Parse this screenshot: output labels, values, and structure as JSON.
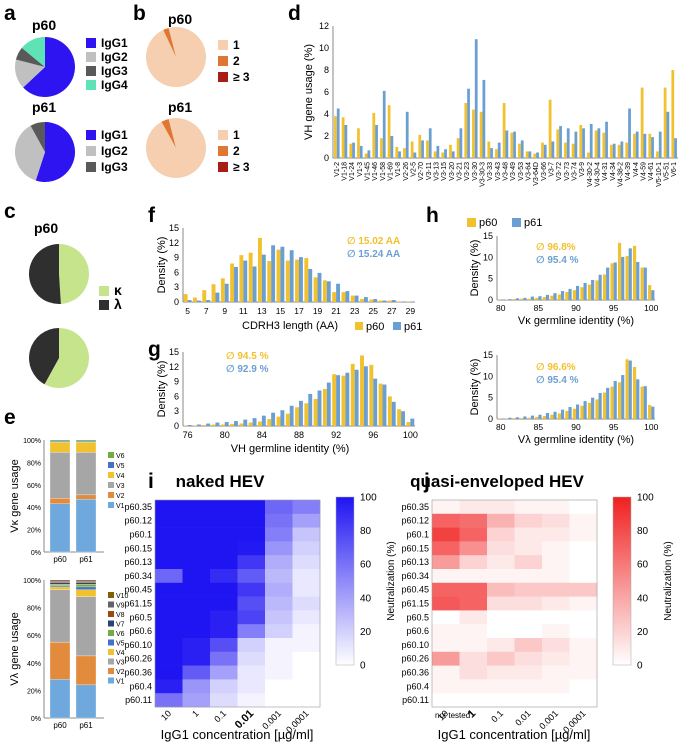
{
  "colors": {
    "igg1": "#2d14f0",
    "igg2": "#c0c0c0",
    "igg3": "#595959",
    "igg4": "#5ee3b5",
    "uses1": "#f5cfaf",
    "uses2": "#df7733",
    "uses3": "#a81d14",
    "kappa": "#c5e48c",
    "lambda": "#2f2f2f",
    "p60": "#f2c12e",
    "p61": "#6b9fd2",
    "naked": "#1f14f2",
    "quasi": "#f02020",
    "vk": {
      "V1": "#6fa8dc",
      "V2": "#e38b3d",
      "V3": "#a6a6a6",
      "V4": "#f2c12e",
      "V5": "#4472c4",
      "V6": "#70ad47"
    },
    "vl": {
      "V1": "#6fa8dc",
      "V2": "#e38b3d",
      "V3": "#a6a6a6",
      "V4": "#f2c12e",
      "V5": "#4472c4",
      "V6": "#70ad47",
      "V7": "#264478",
      "V8": "#9e480e",
      "V9": "#636363",
      "V10": "#806000"
    }
  },
  "panels": {
    "a": "a",
    "b": "b",
    "c": "c",
    "d": "d",
    "e": "e",
    "f": "f",
    "g": "g",
    "h": "h",
    "i": "i",
    "j": "j"
  },
  "chart_data": [
    {
      "id": "a",
      "type": "pie",
      "title_p60": "p60",
      "title_p61": "p61",
      "p60": {
        "labels": [
          "IgG1",
          "IgG2",
          "IgG3",
          "IgG4"
        ],
        "values": [
          63,
          16,
          7,
          14
        ]
      },
      "p61": {
        "labels": [
          "IgG1",
          "IgG2",
          "IgG3"
        ],
        "values": [
          55,
          37,
          8
        ]
      }
    },
    {
      "id": "b",
      "type": "pie",
      "title_p60": "p60",
      "title_p61": "p61",
      "labels": [
        "1",
        "2",
        "≥ 3"
      ],
      "p60": {
        "values": [
          97,
          3,
          0
        ]
      },
      "p61": {
        "values": [
          96,
          4,
          0
        ]
      }
    },
    {
      "id": "c",
      "type": "pie",
      "title_p60": "p60",
      "title_p61": "p61",
      "labels": [
        "κ",
        "λ"
      ],
      "p60": {
        "values": [
          49,
          51
        ]
      },
      "p61": {
        "values": [
          58,
          42
        ]
      }
    },
    {
      "id": "d",
      "type": "bar",
      "ylabel": "VH gene usage (%)",
      "ylim": [
        0,
        12
      ],
      "yticks": [
        "0",
        "2",
        "4",
        "6",
        "8",
        "10",
        "12"
      ],
      "legend": [
        "p60",
        "p61"
      ],
      "categories": [
        "V1-2",
        "V1-18",
        "V1-24",
        "V1-3",
        "V1-45",
        "V1-46",
        "V1-58",
        "V1-69",
        "V1-8",
        "V2-26",
        "V2-5",
        "V2-70",
        "V3-11",
        "V3-13",
        "V3-15",
        "V3-20",
        "V3-21",
        "V3-23",
        "V3-30",
        "V3-30-3",
        "V3-33",
        "V3-43",
        "V3-48",
        "V3-49",
        "V3-53",
        "V3-64",
        "V3-64D",
        "V3-66",
        "V3-7",
        "V3-72",
        "V3-73",
        "V3-74",
        "V3-9",
        "V4-30-2",
        "V4-30-4",
        "V4-31",
        "V4-34",
        "V4-38-2",
        "V4-39",
        "V4-4",
        "V4-59",
        "V4-61",
        "V5-10-1",
        "V5-51",
        "V6-1"
      ],
      "series": [
        {
          "name": "p60",
          "values": [
            3.8,
            3.7,
            1.3,
            2.7,
            0.4,
            4.1,
            1.8,
            4.8,
            1.0,
            0.9,
            1.5,
            2.1,
            1.6,
            0.6,
            0.5,
            1.2,
            1.8,
            5.0,
            4.4,
            4.2,
            1.5,
            0.8,
            5.0,
            2.3,
            1.3,
            0.6,
            0.4,
            1.4,
            5.3,
            2.6,
            1.4,
            1.3,
            3.0,
            0.5,
            2.5,
            2.3,
            1.2,
            1.2,
            1.4,
            2.2,
            6.4,
            2.2,
            0.6,
            6.4,
            8.0
          ]
        },
        {
          "name": "p61",
          "values": [
            4.5,
            3.0,
            1.4,
            1.1,
            0.7,
            3.0,
            6.1,
            2.0,
            0.6,
            4.2,
            0.5,
            1.6,
            2.7,
            1.1,
            0.8,
            0.6,
            2.7,
            6.3,
            10.8,
            7.1,
            0.9,
            1.4,
            2.5,
            2.4,
            1.6,
            0.6,
            0.5,
            1.2,
            1.5,
            2.9,
            2.7,
            2.4,
            2.7,
            3.1,
            2.7,
            3.3,
            1.3,
            1.5,
            4.5,
            2.4,
            2.2,
            1.9,
            2.4,
            4.2,
            1.8
          ]
        }
      ]
    },
    {
      "id": "e_vk",
      "type": "stacked-bar",
      "ylabel": "Vκ gene usage",
      "yticks": [
        "0%",
        "20%",
        "40%",
        "60%",
        "80%",
        "100%"
      ],
      "categories": [
        "p60",
        "p61"
      ],
      "legend": [
        "V6",
        "V5",
        "V4",
        "V3",
        "V2",
        "V1"
      ],
      "series": [
        {
          "name": "V1",
          "values": [
            43,
            47
          ]
        },
        {
          "name": "V2",
          "values": [
            5,
            4
          ]
        },
        {
          "name": "V3",
          "values": [
            41,
            38
          ]
        },
        {
          "name": "V4",
          "values": [
            9,
            9
          ]
        },
        {
          "name": "V5",
          "values": [
            1,
            1
          ]
        },
        {
          "name": "V6",
          "values": [
            1,
            1
          ]
        }
      ]
    },
    {
      "id": "e_vl",
      "type": "stacked-bar",
      "ylabel": "Vλ gene usage",
      "yticks": [
        "0%",
        "20%",
        "40%",
        "60%",
        "80%",
        "100%"
      ],
      "categories": [
        "p60",
        "p61"
      ],
      "legend": [
        "V10",
        "V9",
        "V8",
        "V7",
        "V6",
        "V5",
        "V4",
        "V3",
        "V2",
        "V1"
      ],
      "series": [
        {
          "name": "V1",
          "values": [
            28,
            24
          ]
        },
        {
          "name": "V2",
          "values": [
            27,
            21
          ]
        },
        {
          "name": "V3",
          "values": [
            38,
            43
          ]
        },
        {
          "name": "V4",
          "values": [
            2,
            5
          ]
        },
        {
          "name": "V5",
          "values": [
            1,
            2
          ]
        },
        {
          "name": "V6",
          "values": [
            1,
            2
          ]
        },
        {
          "name": "V7",
          "values": [
            1,
            1
          ]
        },
        {
          "name": "V8",
          "values": [
            1,
            1
          ]
        },
        {
          "name": "V9",
          "values": [
            1,
            1
          ]
        },
        {
          "name": "V10",
          "values": [
            0,
            0
          ]
        }
      ]
    },
    {
      "id": "f",
      "type": "bar",
      "xlabel": "CDRH3 length (AA)",
      "ylabel": "Density (%)",
      "ylim": [
        0,
        15
      ],
      "yticks": [
        "0",
        "3",
        "6",
        "9",
        "12",
        "15"
      ],
      "xticks": [
        "5",
        "7",
        "9",
        "11",
        "13",
        "15",
        "17",
        "19",
        "21",
        "23",
        "25",
        "27",
        "29"
      ],
      "annotations": [
        "∅ 15.02 AA",
        "∅ 15.24 AA"
      ],
      "legend": [
        "p60",
        "p61"
      ],
      "x": [
        5,
        6,
        7,
        8,
        9,
        10,
        11,
        12,
        13,
        14,
        15,
        16,
        17,
        18,
        19,
        20,
        21,
        22,
        23,
        24,
        25,
        26,
        27,
        28,
        29
      ],
      "series": [
        {
          "name": "p60",
          "values": [
            1.6,
            0.9,
            2.4,
            3.6,
            4.8,
            7.8,
            9.5,
            10.0,
            13.0,
            8.3,
            10.6,
            8.4,
            8.6,
            8.9,
            5.0,
            4.4,
            2.0,
            2.0,
            1.3,
            0.6,
            0.5,
            0.3,
            0.3,
            0.1,
            0.1
          ]
        },
        {
          "name": "p61",
          "values": [
            0.4,
            0.3,
            0.4,
            1.9,
            3.7,
            7.1,
            8.4,
            7.2,
            9.6,
            11.5,
            11.2,
            10.5,
            9.1,
            6.7,
            5.9,
            4.2,
            3.7,
            2.2,
            1.3,
            1.0,
            0.6,
            0.3,
            0.4,
            0.1,
            0.1
          ]
        }
      ]
    },
    {
      "id": "g",
      "type": "bar",
      "xlabel": "VH germline identity (%)",
      "ylabel": "Density (%)",
      "ylim": [
        0,
        15
      ],
      "yticks": [
        "0",
        "3",
        "6",
        "9",
        "12",
        "15"
      ],
      "xticks": [
        "76",
        "80",
        "84",
        "88",
        "92",
        "96",
        "100"
      ],
      "annotations": [
        "∅ 94.5 %",
        "∅ 92.9 %"
      ],
      "x": [
        76,
        77,
        78,
        79,
        80,
        81,
        82,
        83,
        84,
        85,
        86,
        87,
        88,
        89,
        90,
        91,
        92,
        93,
        94,
        95,
        96,
        97,
        98,
        99,
        100
      ],
      "series": [
        {
          "name": "p60",
          "values": [
            0.1,
            0.1,
            0.2,
            0.3,
            0.3,
            0.4,
            0.5,
            0.7,
            0.9,
            1.4,
            1.9,
            2.5,
            3.8,
            4.6,
            5.5,
            7.5,
            10.5,
            10.2,
            12.6,
            14.3,
            12.4,
            8.6,
            6.0,
            3.4,
            0.8
          ]
        },
        {
          "name": "p61",
          "values": [
            0.2,
            0.3,
            0.5,
            0.7,
            0.8,
            1.0,
            1.3,
            1.6,
            2.1,
            2.7,
            3.2,
            4.1,
            5.1,
            6.5,
            7.2,
            8.8,
            10.3,
            10.8,
            11.4,
            12.1,
            9.6,
            8.4,
            4.9,
            3.0,
            1.5
          ]
        }
      ]
    },
    {
      "id": "h_vk",
      "type": "bar",
      "xlabel": "Vκ germline identity (%)",
      "ylabel": "Density (%)",
      "ylim": [
        0,
        15
      ],
      "yticks": [
        "0",
        "5",
        "10",
        "15"
      ],
      "xticks": [
        "80",
        "85",
        "90",
        "95",
        "100"
      ],
      "annotations": [
        "∅ 96.8%",
        "∅ 95.4 %"
      ],
      "x": [
        80,
        81,
        82,
        83,
        84,
        85,
        86,
        87,
        88,
        89,
        90,
        91,
        92,
        93,
        94,
        95,
        96,
        97,
        98,
        99,
        100
      ],
      "series": [
        {
          "name": "p60",
          "values": [
            0.1,
            0.1,
            0.2,
            0.3,
            0.3,
            0.5,
            0.7,
            1.0,
            1.3,
            1.9,
            2.3,
            3.0,
            3.6,
            4.6,
            6.0,
            8.6,
            13.4,
            10.3,
            12.7,
            7.6,
            3.5
          ]
        },
        {
          "name": "p61",
          "values": [
            0.1,
            0.2,
            0.4,
            0.5,
            0.8,
            0.9,
            1.2,
            1.6,
            2.1,
            2.6,
            3.3,
            4.0,
            4.7,
            5.9,
            7.6,
            8.8,
            10.1,
            12.1,
            8.9,
            7.6,
            2.3
          ]
        }
      ]
    },
    {
      "id": "h_vl",
      "type": "bar",
      "xlabel": "Vλ germline identity (%)",
      "ylabel": "Density (%)",
      "ylim": [
        0,
        15
      ],
      "yticks": [
        "0",
        "5",
        "10",
        "15"
      ],
      "xticks": [
        "80",
        "85",
        "90",
        "95",
        "100"
      ],
      "annotations": [
        "∅ 96.6%",
        "∅ 95.4 %"
      ],
      "x": [
        80,
        81,
        82,
        83,
        84,
        85,
        86,
        87,
        88,
        89,
        90,
        91,
        92,
        93,
        94,
        95,
        96,
        97,
        98,
        99,
        100
      ],
      "series": [
        {
          "name": "p60",
          "values": [
            0.1,
            0.1,
            0.2,
            0.2,
            0.3,
            0.5,
            0.7,
            1.0,
            1.3,
            1.9,
            2.4,
            3.1,
            3.8,
            4.6,
            6.2,
            7.6,
            8.6,
            14.0,
            12.2,
            7.6,
            3.3
          ]
        },
        {
          "name": "p61",
          "values": [
            0.1,
            0.3,
            0.4,
            0.6,
            0.8,
            1.0,
            1.4,
            1.7,
            2.2,
            2.8,
            3.4,
            4.2,
            5.0,
            6.1,
            7.3,
            8.9,
            10.3,
            13.7,
            9.3,
            7.7,
            2.9
          ]
        }
      ]
    },
    {
      "id": "i",
      "type": "heatmap",
      "title": "naked HEV",
      "xlabel": "IgG1 concentration [µg/ml]",
      "colorbar_label": "Neutralization (%)",
      "colorbar_ticks": [
        "0",
        "20",
        "40",
        "60",
        "80",
        "100"
      ],
      "xticks": [
        "10",
        "1",
        "0.1",
        "0.01",
        "0.001",
        "0.0001"
      ],
      "bold_tick": "0.01",
      "rows": [
        "p60.35",
        "p60.12",
        "p60.1",
        "p60.15",
        "p60.13",
        "p60.34",
        "p60.45",
        "p61.15",
        "p60.5",
        "p60.6",
        "p60.10",
        "p60.26",
        "p60.36",
        "p60.4",
        "p60.11"
      ],
      "values": [
        [
          100,
          100,
          100,
          100,
          65,
          55
        ],
        [
          100,
          100,
          100,
          100,
          60,
          40
        ],
        [
          100,
          100,
          100,
          100,
          55,
          25
        ],
        [
          100,
          100,
          100,
          98,
          45,
          20
        ],
        [
          100,
          100,
          100,
          85,
          35,
          15
        ],
        [
          65,
          100,
          90,
          70,
          30,
          10
        ],
        [
          100,
          100,
          100,
          85,
          35,
          10
        ],
        [
          100,
          100,
          100,
          75,
          30,
          15
        ],
        [
          100,
          100,
          95,
          80,
          25,
          10
        ],
        [
          100,
          100,
          95,
          55,
          20,
          5
        ],
        [
          100,
          95,
          75,
          20,
          5,
          5
        ],
        [
          100,
          95,
          60,
          15,
          5,
          0
        ],
        [
          100,
          70,
          40,
          10,
          5,
          0
        ],
        [
          95,
          45,
          20,
          10,
          0,
          0
        ],
        [
          60,
          40,
          15,
          5,
          0,
          0
        ]
      ]
    },
    {
      "id": "j",
      "type": "heatmap",
      "title": "quasi-enveloped HEV",
      "xlabel": "IgG1 concentration [µg/ml]",
      "colorbar_label": "Neutralization (%)",
      "colorbar_ticks": [
        "0",
        "20",
        "40",
        "60",
        "80",
        "100"
      ],
      "xticks": [
        "10",
        "1",
        "0.1",
        "0.01",
        "0.001",
        "0.0001"
      ],
      "bold_tick": "1",
      "not_tested": "not tested",
      "rows": [
        "p60.35",
        "p60.12",
        "p60.1",
        "p60.15",
        "p60.13",
        "p60.34",
        "p60.45",
        "p61.15",
        "p60.5",
        "p60.6",
        "p60.10",
        "p60.26",
        "p60.36",
        "p60.4",
        "p60.11"
      ],
      "values": [
        [
          5,
          10,
          10,
          5,
          5,
          0
        ],
        [
          70,
          65,
          35,
          20,
          15,
          5
        ],
        [
          85,
          70,
          20,
          10,
          10,
          5
        ],
        [
          70,
          50,
          15,
          10,
          5,
          0
        ],
        [
          45,
          20,
          10,
          20,
          5,
          0
        ],
        [
          5,
          5,
          5,
          5,
          5,
          0
        ],
        [
          70,
          70,
          30,
          25,
          25,
          25
        ],
        [
          75,
          70,
          15,
          15,
          10,
          5
        ],
        [
          0,
          10,
          0,
          0,
          0,
          0
        ],
        [
          5,
          5,
          0,
          0,
          5,
          0
        ],
        [
          5,
          5,
          10,
          25,
          15,
          5
        ],
        [
          45,
          15,
          25,
          15,
          10,
          5
        ],
        [
          5,
          15,
          10,
          10,
          5,
          5
        ],
        [
          5,
          5,
          5,
          5,
          5,
          0
        ],
        [
          null,
          null,
          null,
          null,
          null,
          null
        ]
      ]
    }
  ]
}
